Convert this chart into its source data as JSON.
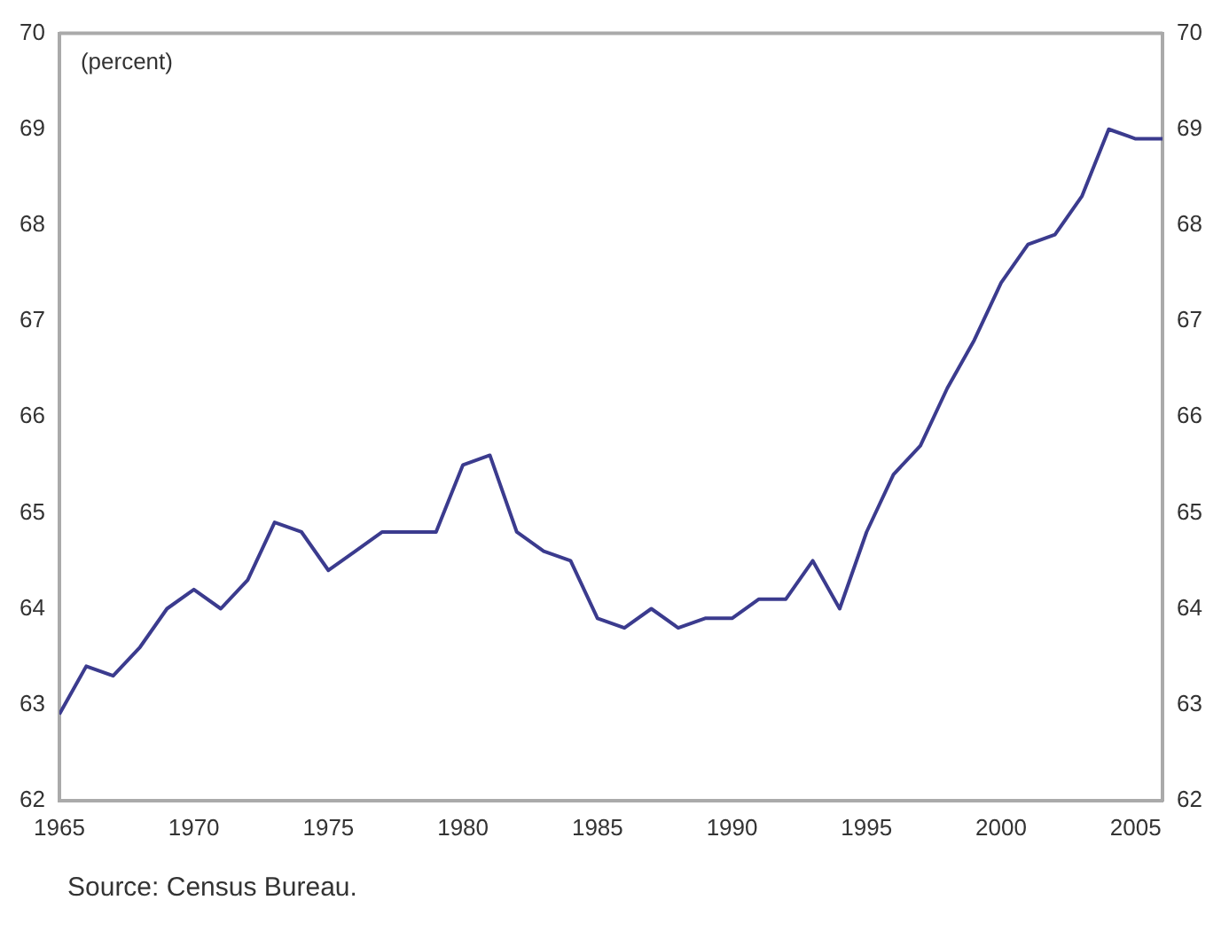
{
  "chart_data": {
    "type": "line",
    "ylabel": "(percent)",
    "annotations": [
      "Source: Census Bureau."
    ],
    "x": [
      1965,
      1966,
      1967,
      1968,
      1969,
      1970,
      1971,
      1972,
      1973,
      1974,
      1975,
      1976,
      1977,
      1978,
      1979,
      1980,
      1981,
      1982,
      1983,
      1984,
      1985,
      1986,
      1987,
      1988,
      1989,
      1990,
      1991,
      1992,
      1993,
      1994,
      1995,
      1996,
      1997,
      1998,
      1999,
      2000,
      2001,
      2002,
      2003,
      2004,
      2005,
      2006
    ],
    "series": [
      {
        "color": "#3b3b8e",
        "values": [
          62.9,
          63.4,
          63.3,
          63.6,
          64.0,
          64.2,
          64.0,
          64.3,
          64.9,
          64.8,
          64.4,
          64.6,
          64.8,
          64.8,
          64.8,
          65.5,
          65.6,
          64.8,
          64.6,
          64.5,
          63.9,
          63.8,
          64.0,
          63.8,
          63.9,
          63.9,
          64.1,
          64.1,
          64.5,
          64.0,
          64.8,
          65.4,
          65.7,
          66.3,
          66.8,
          67.4,
          67.8,
          67.9,
          68.3,
          69.0,
          68.9,
          68.9
        ]
      }
    ],
    "xlim": [
      1965,
      2006
    ],
    "xticks": [
      1965,
      1970,
      1975,
      1980,
      1985,
      1990,
      1995,
      2000,
      2005
    ],
    "ylim": [
      62,
      70
    ],
    "yticks": [
      62,
      63,
      64,
      65,
      66,
      67,
      68,
      69,
      70
    ],
    "y2lim": [
      62,
      70
    ],
    "y2ticks": [
      62,
      63,
      64,
      65,
      66,
      67,
      68,
      69,
      70
    ],
    "grid": false,
    "legend": false,
    "marker": "none",
    "line_style": "solid"
  }
}
